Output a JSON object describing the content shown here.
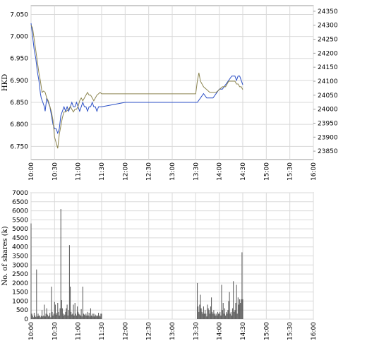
{
  "colors": {
    "hkd_line": "#2b4fc6",
    "index_line": "#8c8550",
    "volume_bar": "#555555",
    "grid": "#d9d9d9",
    "frame": "#999999"
  },
  "chart_data": [
    {
      "type": "line",
      "title": "",
      "ylabel": "HKD",
      "ylim_left": [
        6.72,
        7.07
      ],
      "ylim_right": [
        23820,
        24370
      ],
      "grid": true,
      "x_ticks": [
        "10:00",
        "10:30",
        "11:00",
        "11:30",
        "12:00",
        "12:30",
        "13:00",
        "13:30",
        "14:00",
        "14:30",
        "15:00",
        "15:30",
        "16:00"
      ],
      "y_ticks_left": [
        "7.050",
        "7.000",
        "6.950",
        "6.900",
        "6.850",
        "6.800",
        "6.750"
      ],
      "y_ticks_right": [
        "24350",
        "24300",
        "24250",
        "24200",
        "24150",
        "24100",
        "24050",
        "24000",
        "23950",
        "23900",
        "23850"
      ],
      "series": [
        {
          "axis": "left",
          "color_key": "hkd_line",
          "points": [
            [
              0,
              7.03
            ],
            [
              2,
              7.0
            ],
            [
              4,
              6.97
            ],
            [
              6,
              6.95
            ],
            [
              8,
              6.92
            ],
            [
              10,
              6.9
            ],
            [
              12,
              6.87
            ],
            [
              13,
              6.86
            ],
            [
              15,
              6.85
            ],
            [
              17,
              6.84
            ],
            [
              18,
              6.83
            ],
            [
              20,
              6.86
            ],
            [
              22,
              6.85
            ],
            [
              24,
              6.84
            ],
            [
              26,
              6.82
            ],
            [
              28,
              6.8
            ],
            [
              30,
              6.79
            ],
            [
              32,
              6.79
            ],
            [
              34,
              6.78
            ],
            [
              36,
              6.79
            ],
            [
              38,
              6.82
            ],
            [
              40,
              6.83
            ],
            [
              42,
              6.84
            ],
            [
              44,
              6.83
            ],
            [
              46,
              6.84
            ],
            [
              48,
              6.83
            ],
            [
              50,
              6.84
            ],
            [
              52,
              6.85
            ],
            [
              54,
              6.84
            ],
            [
              56,
              6.84
            ],
            [
              58,
              6.85
            ],
            [
              60,
              6.84
            ],
            [
              62,
              6.83
            ],
            [
              64,
              6.84
            ],
            [
              66,
              6.85
            ],
            [
              68,
              6.84
            ],
            [
              70,
              6.84
            ],
            [
              72,
              6.83
            ],
            [
              74,
              6.84
            ],
            [
              76,
              6.84
            ],
            [
              78,
              6.85
            ],
            [
              80,
              6.84
            ],
            [
              82,
              6.84
            ],
            [
              84,
              6.83
            ],
            [
              86,
              6.84
            ],
            [
              88,
              6.84
            ],
            [
              90,
              6.84
            ],
            [
              120,
              6.85
            ],
            [
              150,
              6.85
            ],
            [
              180,
              6.85
            ],
            [
              212,
              6.85
            ],
            [
              216,
              6.86
            ],
            [
              220,
              6.87
            ],
            [
              224,
              6.86
            ],
            [
              228,
              6.86
            ],
            [
              232,
              6.86
            ],
            [
              236,
              6.87
            ],
            [
              240,
              6.88
            ],
            [
              244,
              6.88
            ],
            [
              248,
              6.89
            ],
            [
              252,
              6.9
            ],
            [
              256,
              6.91
            ],
            [
              260,
              6.91
            ],
            [
              262,
              6.9
            ],
            [
              264,
              6.91
            ],
            [
              266,
              6.91
            ],
            [
              268,
              6.9
            ],
            [
              270,
              6.89
            ]
          ]
        },
        {
          "axis": "right",
          "color_key": "index_line",
          "points": [
            [
              0,
              24300
            ],
            [
              2,
              24290
            ],
            [
              4,
              24250
            ],
            [
              6,
              24210
            ],
            [
              8,
              24170
            ],
            [
              10,
              24130
            ],
            [
              12,
              24100
            ],
            [
              14,
              24060
            ],
            [
              16,
              24065
            ],
            [
              18,
              24060
            ],
            [
              20,
              24040
            ],
            [
              22,
              24030
            ],
            [
              24,
              24010
            ],
            [
              26,
              23990
            ],
            [
              28,
              23960
            ],
            [
              30,
              23900
            ],
            [
              32,
              23880
            ],
            [
              34,
              23860
            ],
            [
              36,
              23910
            ],
            [
              38,
              23940
            ],
            [
              40,
              23970
            ],
            [
              42,
              23990
            ],
            [
              44,
              23990
            ],
            [
              46,
              23995
            ],
            [
              48,
              24000
            ],
            [
              50,
              24010
            ],
            [
              52,
              24000
            ],
            [
              54,
              23990
            ],
            [
              56,
              24000
            ],
            [
              58,
              24000
            ],
            [
              60,
              24010
            ],
            [
              62,
              24030
            ],
            [
              64,
              24040
            ],
            [
              66,
              24030
            ],
            [
              68,
              24040
            ],
            [
              70,
              24050
            ],
            [
              72,
              24060
            ],
            [
              74,
              24050
            ],
            [
              76,
              24050
            ],
            [
              78,
              24040
            ],
            [
              80,
              24030
            ],
            [
              82,
              24040
            ],
            [
              84,
              24050
            ],
            [
              86,
              24055
            ],
            [
              88,
              24060
            ],
            [
              90,
              24055
            ],
            [
              120,
              24055
            ],
            [
              150,
              24055
            ],
            [
              180,
              24055
            ],
            [
              210,
              24055
            ],
            [
              212,
              24100
            ],
            [
              214,
              24130
            ],
            [
              216,
              24100
            ],
            [
              220,
              24080
            ],
            [
              224,
              24070
            ],
            [
              228,
              24060
            ],
            [
              232,
              24060
            ],
            [
              236,
              24060
            ],
            [
              240,
              24070
            ],
            [
              244,
              24080
            ],
            [
              248,
              24080
            ],
            [
              252,
              24100
            ],
            [
              256,
              24100
            ],
            [
              260,
              24100
            ],
            [
              262,
              24090
            ],
            [
              264,
              24090
            ],
            [
              266,
              24080
            ],
            [
              268,
              24080
            ],
            [
              270,
              24070
            ]
          ]
        }
      ]
    },
    {
      "type": "bar",
      "title": "",
      "ylabel": "No. of shares (k)",
      "ylim": [
        0,
        7000
      ],
      "grid": true,
      "x_ticks": [
        "10:00",
        "10:30",
        "11:00",
        "11:30",
        "12:00",
        "12:30",
        "13:00",
        "13:30",
        "14:00",
        "14:30",
        "15:00",
        "15:30",
        "16:00"
      ],
      "y_ticks": [
        "7000",
        "6500",
        "6000",
        "5500",
        "5000",
        "4500",
        "4000",
        "3500",
        "3000",
        "2500",
        "2000",
        "1500",
        "1000",
        "500",
        "0"
      ],
      "bars": [
        [
          0,
          5300
        ],
        [
          1,
          300
        ],
        [
          2,
          200
        ],
        [
          3,
          100
        ],
        [
          4,
          350
        ],
        [
          5,
          200
        ],
        [
          6,
          120
        ],
        [
          7,
          2750
        ],
        [
          8,
          150
        ],
        [
          9,
          300
        ],
        [
          10,
          180
        ],
        [
          11,
          200
        ],
        [
          12,
          100
        ],
        [
          13,
          180
        ],
        [
          14,
          500
        ],
        [
          15,
          150
        ],
        [
          16,
          200
        ],
        [
          17,
          800
        ],
        [
          18,
          150
        ],
        [
          19,
          300
        ],
        [
          20,
          600
        ],
        [
          21,
          250
        ],
        [
          22,
          150
        ],
        [
          23,
          200
        ],
        [
          24,
          350
        ],
        [
          25,
          100
        ],
        [
          26,
          1800
        ],
        [
          27,
          400
        ],
        [
          28,
          200
        ],
        [
          29,
          300
        ],
        [
          30,
          950
        ],
        [
          31,
          800
        ],
        [
          32,
          250
        ],
        [
          33,
          350
        ],
        [
          34,
          900
        ],
        [
          35,
          400
        ],
        [
          36,
          200
        ],
        [
          37,
          600
        ],
        [
          38,
          6100
        ],
        [
          39,
          1050
        ],
        [
          40,
          600
        ],
        [
          41,
          300
        ],
        [
          42,
          200
        ],
        [
          43,
          250
        ],
        [
          44,
          400
        ],
        [
          45,
          600
        ],
        [
          46,
          800
        ],
        [
          47,
          200
        ],
        [
          48,
          500
        ],
        [
          49,
          4100
        ],
        [
          50,
          1800
        ],
        [
          51,
          400
        ],
        [
          52,
          250
        ],
        [
          53,
          300
        ],
        [
          54,
          800
        ],
        [
          55,
          200
        ],
        [
          56,
          900
        ],
        [
          57,
          300
        ],
        [
          58,
          200
        ],
        [
          59,
          700
        ],
        [
          60,
          400
        ],
        [
          61,
          300
        ],
        [
          62,
          250
        ],
        [
          63,
          200
        ],
        [
          64,
          550
        ],
        [
          65,
          150
        ],
        [
          66,
          1800
        ],
        [
          67,
          300
        ],
        [
          68,
          250
        ],
        [
          69,
          200
        ],
        [
          70,
          300
        ],
        [
          71,
          200
        ],
        [
          72,
          400
        ],
        [
          73,
          200
        ],
        [
          74,
          350
        ],
        [
          75,
          150
        ],
        [
          76,
          600
        ],
        [
          77,
          200
        ],
        [
          78,
          300
        ],
        [
          79,
          150
        ],
        [
          80,
          300
        ],
        [
          81,
          150
        ],
        [
          82,
          250
        ],
        [
          83,
          200
        ],
        [
          84,
          150
        ],
        [
          85,
          200
        ],
        [
          86,
          350
        ],
        [
          87,
          200
        ],
        [
          88,
          150
        ],
        [
          89,
          300
        ],
        [
          90,
          300
        ],
        [
          212,
          2000
        ],
        [
          213,
          700
        ],
        [
          214,
          400
        ],
        [
          215,
          800
        ],
        [
          216,
          1350
        ],
        [
          217,
          600
        ],
        [
          218,
          400
        ],
        [
          219,
          300
        ],
        [
          220,
          700
        ],
        [
          221,
          300
        ],
        [
          222,
          500
        ],
        [
          223,
          300
        ],
        [
          224,
          150
        ],
        [
          225,
          800
        ],
        [
          226,
          600
        ],
        [
          227,
          500
        ],
        [
          228,
          300
        ],
        [
          229,
          700
        ],
        [
          230,
          1200
        ],
        [
          231,
          400
        ],
        [
          232,
          300
        ],
        [
          233,
          500
        ],
        [
          234,
          300
        ],
        [
          235,
          200
        ],
        [
          236,
          300
        ],
        [
          237,
          200
        ],
        [
          238,
          400
        ],
        [
          239,
          300
        ],
        [
          240,
          300
        ],
        [
          241,
          400
        ],
        [
          242,
          200
        ],
        [
          243,
          1900
        ],
        [
          244,
          500
        ],
        [
          245,
          900
        ],
        [
          246,
          300
        ],
        [
          247,
          600
        ],
        [
          248,
          200
        ],
        [
          249,
          400
        ],
        [
          250,
          300
        ],
        [
          251,
          500
        ],
        [
          252,
          1000
        ],
        [
          253,
          1500
        ],
        [
          254,
          300
        ],
        [
          255,
          400
        ],
        [
          256,
          200
        ],
        [
          257,
          600
        ],
        [
          258,
          2100
        ],
        [
          259,
          400
        ],
        [
          260,
          500
        ],
        [
          261,
          900
        ],
        [
          262,
          1900
        ],
        [
          263,
          300
        ],
        [
          264,
          1200
        ],
        [
          265,
          800
        ],
        [
          266,
          1100
        ],
        [
          267,
          900
        ],
        [
          268,
          1100
        ],
        [
          269,
          3700
        ],
        [
          270,
          1100
        ]
      ]
    }
  ]
}
